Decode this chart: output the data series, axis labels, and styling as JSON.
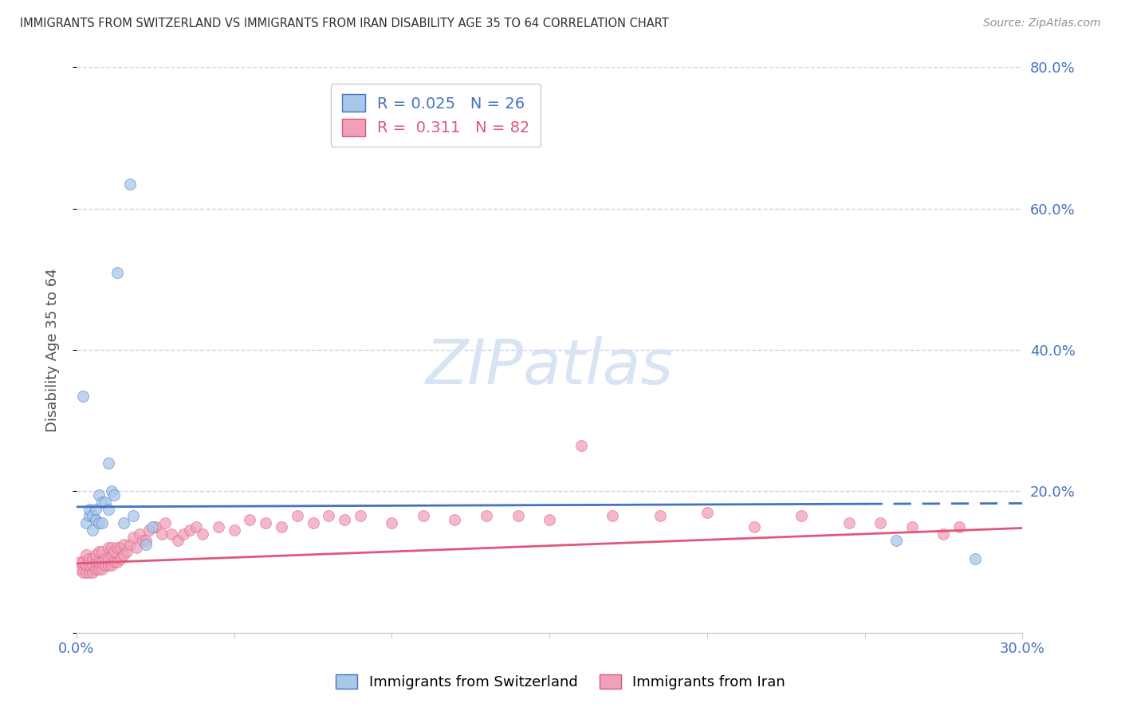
{
  "title": "IMMIGRANTS FROM SWITZERLAND VS IMMIGRANTS FROM IRAN DISABILITY AGE 35 TO 64 CORRELATION CHART",
  "source": "Source: ZipAtlas.com",
  "ylabel": "Disability Age 35 to 64",
  "xlim": [
    0.0,
    0.3
  ],
  "ylim": [
    0.0,
    0.8
  ],
  "color_swiss": "#a8c8e8",
  "color_iran": "#f0a0b8",
  "color_swiss_line": "#4472c4",
  "color_iran_line": "#e05878",
  "color_axis_labels": "#4472c4",
  "color_grid": "#c8d4e8",
  "color_title": "#303030",
  "color_source": "#909090",
  "watermark_color": "#d8e4f4",
  "swiss_x": [
    0.002,
    0.003,
    0.004,
    0.004,
    0.005,
    0.005,
    0.006,
    0.006,
    0.007,
    0.007,
    0.008,
    0.008,
    0.009,
    0.01,
    0.01,
    0.011,
    0.012,
    0.013,
    0.015,
    0.017,
    0.018,
    0.022,
    0.024,
    0.26,
    0.285
  ],
  "swiss_y": [
    0.335,
    0.155,
    0.165,
    0.175,
    0.145,
    0.165,
    0.16,
    0.175,
    0.155,
    0.195,
    0.155,
    0.185,
    0.185,
    0.24,
    0.175,
    0.2,
    0.195,
    0.51,
    0.155,
    0.635,
    0.165,
    0.125,
    0.15,
    0.13,
    0.105
  ],
  "iran_x": [
    0.001,
    0.001,
    0.002,
    0.002,
    0.003,
    0.003,
    0.003,
    0.004,
    0.004,
    0.004,
    0.005,
    0.005,
    0.005,
    0.006,
    0.006,
    0.006,
    0.007,
    0.007,
    0.007,
    0.008,
    0.008,
    0.008,
    0.009,
    0.009,
    0.01,
    0.01,
    0.01,
    0.011,
    0.011,
    0.011,
    0.012,
    0.012,
    0.013,
    0.013,
    0.014,
    0.014,
    0.015,
    0.015,
    0.016,
    0.017,
    0.018,
    0.019,
    0.02,
    0.021,
    0.022,
    0.023,
    0.025,
    0.027,
    0.028,
    0.03,
    0.032,
    0.034,
    0.036,
    0.038,
    0.04,
    0.045,
    0.05,
    0.055,
    0.06,
    0.065,
    0.07,
    0.075,
    0.08,
    0.085,
    0.09,
    0.1,
    0.11,
    0.12,
    0.13,
    0.14,
    0.15,
    0.16,
    0.17,
    0.185,
    0.2,
    0.215,
    0.23,
    0.245,
    0.255,
    0.265,
    0.275,
    0.28
  ],
  "iran_y": [
    0.09,
    0.1,
    0.085,
    0.1,
    0.085,
    0.095,
    0.11,
    0.085,
    0.095,
    0.105,
    0.085,
    0.095,
    0.105,
    0.09,
    0.1,
    0.11,
    0.09,
    0.1,
    0.115,
    0.09,
    0.1,
    0.115,
    0.095,
    0.105,
    0.095,
    0.105,
    0.12,
    0.095,
    0.11,
    0.12,
    0.1,
    0.115,
    0.1,
    0.12,
    0.105,
    0.12,
    0.11,
    0.125,
    0.115,
    0.125,
    0.135,
    0.12,
    0.14,
    0.13,
    0.13,
    0.145,
    0.15,
    0.14,
    0.155,
    0.14,
    0.13,
    0.14,
    0.145,
    0.15,
    0.14,
    0.15,
    0.145,
    0.16,
    0.155,
    0.15,
    0.165,
    0.155,
    0.165,
    0.16,
    0.165,
    0.155,
    0.165,
    0.16,
    0.165,
    0.165,
    0.16,
    0.265,
    0.165,
    0.165,
    0.17,
    0.15,
    0.165,
    0.155,
    0.155,
    0.15,
    0.14,
    0.15
  ],
  "swiss_line_x": [
    0.0,
    0.3
  ],
  "swiss_line_y": [
    0.178,
    0.183
  ],
  "iran_line_x": [
    0.0,
    0.3
  ],
  "iran_line_y": [
    0.098,
    0.148
  ]
}
